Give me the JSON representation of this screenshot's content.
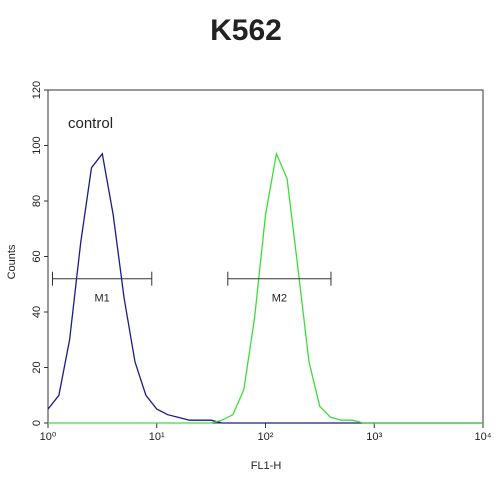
{
  "chart_data": {
    "type": "line",
    "title": "K562",
    "xlabel": "FL1-H",
    "ylabel": "Counts",
    "xscale": "log",
    "x": [
      1,
      1.26,
      1.58,
      2,
      2.51,
      3.16,
      3.98,
      5.01,
      6.31,
      7.94,
      10,
      12.6,
      15.8,
      20,
      25.1,
      31.6,
      39.8,
      50.1,
      63.1,
      79.4,
      100,
      126,
      158,
      200,
      251,
      316,
      398,
      501,
      631,
      794,
      1000,
      1259,
      1585,
      1995,
      2512,
      3162,
      3981,
      5012,
      6310,
      7943,
      10000
    ],
    "series": [
      {
        "name": "control",
        "color": "#1a1a8c",
        "values": [
          5,
          10,
          30,
          65,
          92,
          97,
          75,
          45,
          22,
          10,
          5,
          3,
          2,
          1,
          1,
          1,
          0,
          0,
          0,
          0,
          0,
          0,
          0,
          0,
          0,
          0,
          0,
          0,
          0,
          0,
          0,
          0,
          0,
          0,
          0,
          0,
          0,
          0,
          0,
          0,
          0
        ]
      },
      {
        "color": "#3ddc3d",
        "values": [
          0,
          0,
          0,
          0,
          0,
          0,
          0,
          0,
          0,
          0,
          0,
          0,
          0,
          0,
          0,
          0,
          1,
          3,
          12,
          38,
          75,
          97,
          88,
          55,
          22,
          6,
          2,
          1,
          1,
          0,
          0,
          0,
          0,
          0,
          0,
          0,
          0,
          0,
          0,
          0,
          0
        ]
      }
    ],
    "markers": [
      {
        "label": "M1",
        "range": [
          1.1,
          9
        ],
        "level": 52
      },
      {
        "label": "M2",
        "range": [
          45,
          400
        ],
        "level": 52
      }
    ],
    "xlim": [
      1,
      10000
    ],
    "xticks": [
      {
        "value": 1,
        "label": "10⁰"
      },
      {
        "value": 10,
        "label": "10¹"
      },
      {
        "value": 100,
        "label": "10²"
      },
      {
        "value": 1000,
        "label": "10³"
      },
      {
        "value": 10000,
        "label": "10⁴"
      }
    ],
    "ylim": [
      0,
      120
    ],
    "yticks": [
      0,
      20,
      40,
      60,
      80,
      100,
      120
    ]
  }
}
